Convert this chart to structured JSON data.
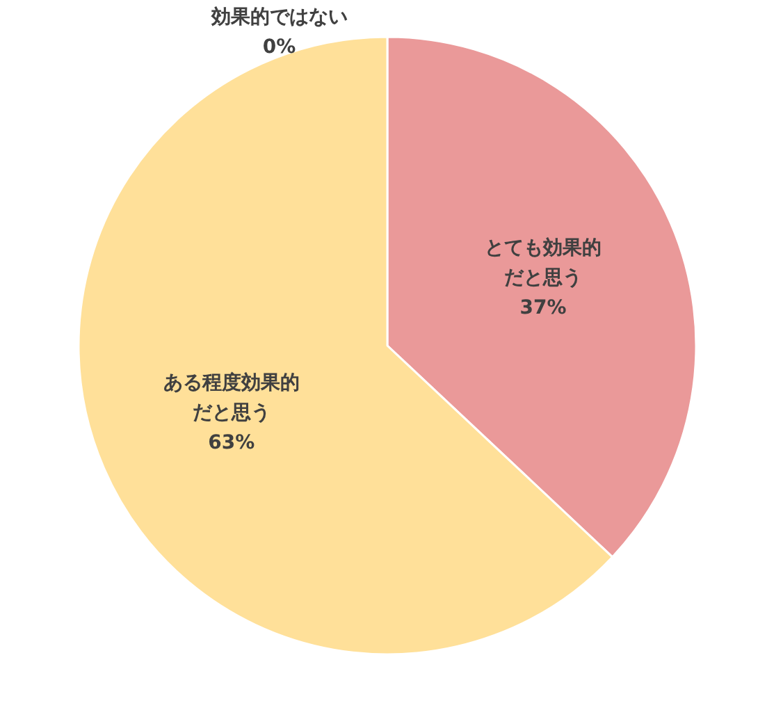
{
  "chart_data": {
    "type": "pie",
    "categories": [
      "とても効果的だと思う",
      "ある程度効果的だと思う",
      "効果的ではない"
    ],
    "values": [
      37,
      63,
      0
    ],
    "colors": [
      "#ea9999",
      "#ffe099",
      "#cccccc"
    ],
    "value_labels": [
      "37%",
      "63%",
      "0%"
    ]
  }
}
